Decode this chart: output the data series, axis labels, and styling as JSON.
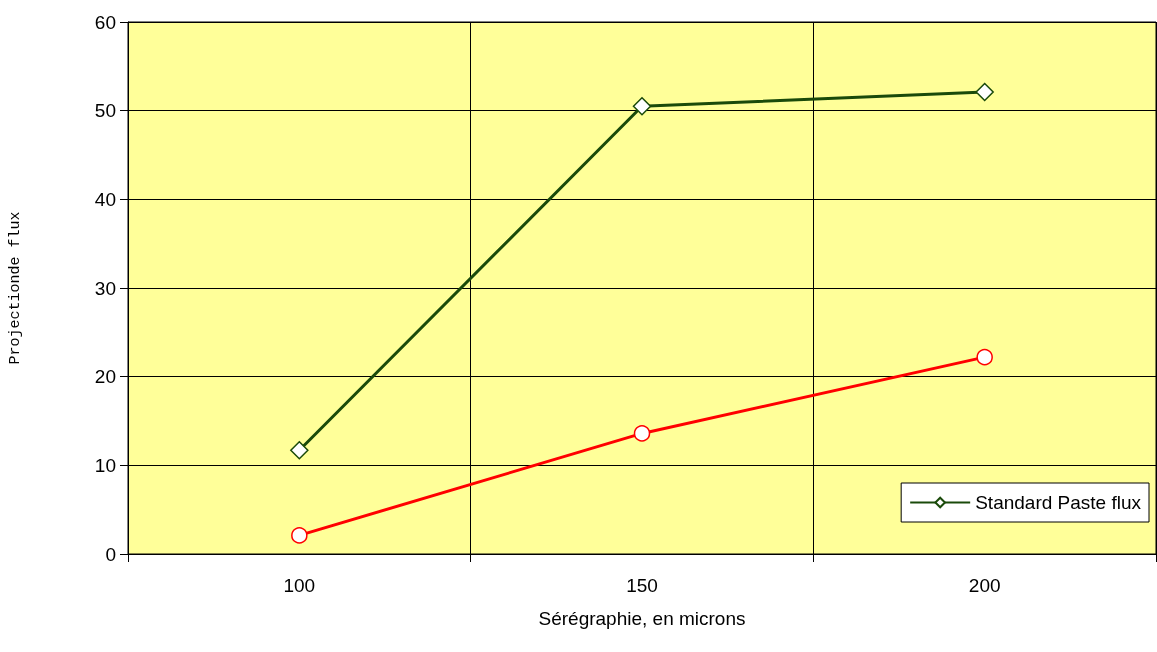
{
  "chart_data": {
    "type": "line",
    "xlabel": "Sérégraphie, en microns",
    "ylabel": "Projectionde flux",
    "categories": [
      "100",
      "150",
      "200"
    ],
    "series": [
      {
        "name": "Standard Paste flux",
        "color": "#1a4a0a",
        "marker": "diamond",
        "values": [
          11.7,
          50.5,
          52.1
        ]
      },
      {
        "color": "#ff0000",
        "marker": "circle",
        "values": [
          2.1,
          13.6,
          22.2
        ]
      }
    ],
    "ylim": [
      0,
      60
    ],
    "yticks": [
      0,
      10,
      20,
      30,
      40,
      50,
      60
    ],
    "grid": true,
    "legend": "bottom right"
  }
}
